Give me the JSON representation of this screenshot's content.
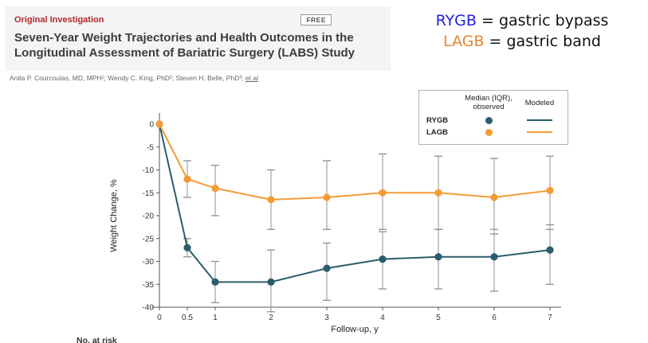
{
  "article": {
    "kicker": "Original Investigation",
    "kicker_color": "#b3282d",
    "free_badge": "FREE",
    "title_line1": "Seven-Year Weight Trajectories and Health Outcomes in the",
    "title_line2": "Longitudinal Assessment of Bariatric Surgery (LABS) Study",
    "authors": "Anita P. Courcoulas, MD, MPH¹; Wendy C. King, PhD²; Steven H. Belle, PhD³; ",
    "et_al": "et al"
  },
  "key": {
    "rygb_abbr": "RYGB",
    "rygb_rest": " = gastric bypass",
    "rygb_color": "#2121de",
    "lagb_abbr": "LAGB",
    "lagb_rest": " = gastric band",
    "lagb_color": "#e5862d"
  },
  "chart_data": {
    "type": "line",
    "xlabel": "Follow-up, y",
    "ylabel": "Weight Change, %",
    "x_ticks": [
      0,
      0.5,
      1,
      2,
      3,
      4,
      5,
      6,
      7
    ],
    "y_ticks": [
      0,
      -5,
      -10,
      -15,
      -20,
      -25,
      -30,
      -35,
      -40
    ],
    "ylim": [
      -40,
      0
    ],
    "xlim": [
      0,
      7
    ],
    "grid": false,
    "iqr_color": "#8f8f8f",
    "legend": {
      "position": "top-right",
      "observed_line1": "Median (IQR),",
      "observed_line2": "observed",
      "modeled": "Modeled"
    },
    "series": [
      {
        "name": "RYGB",
        "color": "#2a5d6c",
        "x": [
          0,
          0.5,
          1,
          2,
          3,
          4,
          5,
          6,
          7
        ],
        "median": [
          0,
          -27,
          -34.5,
          -34.5,
          -31.5,
          -29.5,
          -29,
          -29,
          -27.5
        ],
        "iqr_high": [
          0,
          -25,
          -30,
          -27.5,
          -26,
          -23.5,
          -23,
          -23,
          -22
        ],
        "iqr_low": [
          0,
          -29,
          -39,
          -41,
          -38.5,
          -36,
          -36,
          -36.5,
          -35
        ]
      },
      {
        "name": "LAGB",
        "color": "#f39c35",
        "x": [
          0,
          0.5,
          1,
          2,
          3,
          4,
          5,
          6,
          7
        ],
        "median": [
          0,
          -12,
          -14,
          -16.5,
          -16,
          -15,
          -15,
          -16,
          -14.5
        ],
        "iqr_high": [
          0,
          -8,
          -9,
          -10,
          -8,
          -6.5,
          -7,
          -7.5,
          -7
        ],
        "iqr_low": [
          0,
          -16,
          -20,
          -23,
          -23,
          -23,
          -23,
          -24,
          -23
        ]
      }
    ]
  },
  "footer": {
    "no_at_risk": "No. at risk"
  }
}
